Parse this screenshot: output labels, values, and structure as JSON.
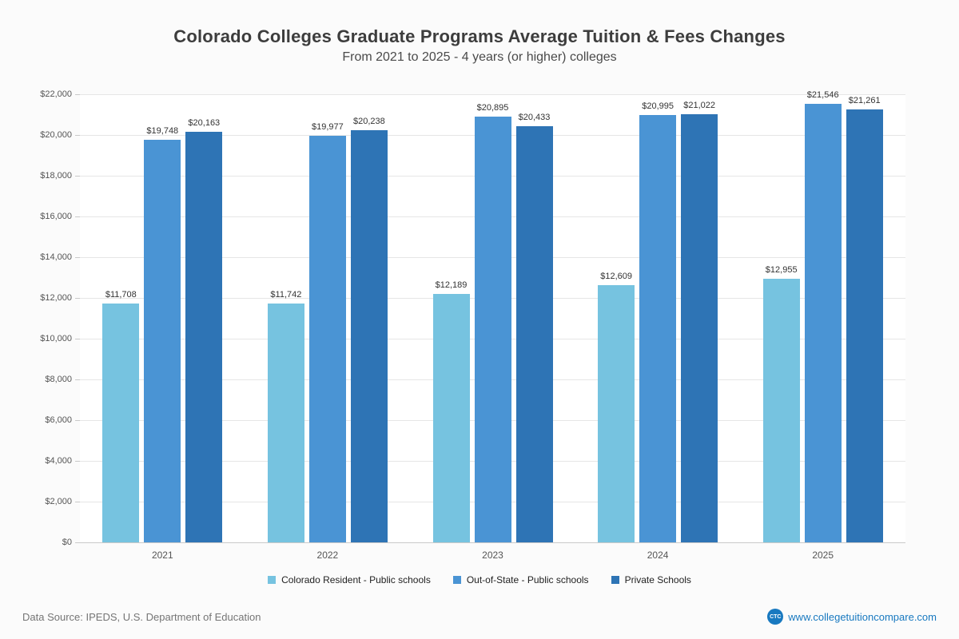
{
  "chart_data": {
    "type": "bar",
    "title": "Colorado Colleges Graduate Programs Average Tuition & Fees Changes",
    "subtitle": "From 2021 to 2025 - 4 years (or higher) colleges",
    "categories": [
      "2021",
      "2022",
      "2023",
      "2024",
      "2025"
    ],
    "series": [
      {
        "name": "Colorado Resident - Public schools",
        "color": "#76c3e0",
        "values": [
          11708,
          11742,
          12189,
          12609,
          12955
        ]
      },
      {
        "name": "Out-of-State - Public schools",
        "color": "#4a94d4",
        "values": [
          19748,
          19977,
          20895,
          20995,
          21546
        ]
      },
      {
        "name": "Private Schools",
        "color": "#2e74b5",
        "values": [
          20163,
          20238,
          20433,
          21022,
          21261
        ]
      }
    ],
    "xlabel": "",
    "ylabel": "",
    "ylim": [
      0,
      22000
    ],
    "ytick_step": 2000,
    "grid": true,
    "legend_position": "bottom",
    "value_label_prefix": "$"
  },
  "footer": {
    "source": "Data Source: IPEDS, U.S. Department of Education",
    "logo_text": "CTC",
    "website": "www.collegetuitioncompare.com"
  }
}
